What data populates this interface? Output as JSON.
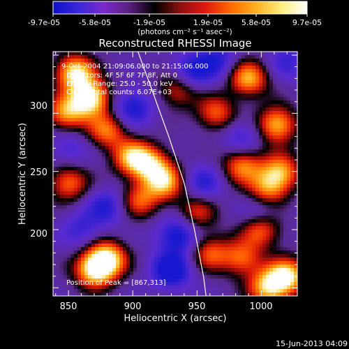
{
  "chart_data": {
    "type": "heatmap",
    "title": "Reconstructed RHESSI Image",
    "xlabel": "Heliocentric X (arcsec)",
    "ylabel": "Heliocentric Y (arcsec)",
    "xlim": [
      838,
      1028
    ],
    "ylim": [
      143,
      353
    ],
    "x_ticks": [
      850,
      900,
      950,
      1000
    ],
    "y_ticks": [
      200,
      250,
      300
    ],
    "colorbar": {
      "label": "(photons cm⁻² s⁻¹ asec⁻²)",
      "range": [
        -9.7e-05,
        9.7e-05
      ],
      "tick_labels": [
        "-9.7e-05",
        "-5.8e-05",
        "-1.9e-05",
        "1.9e-05",
        "5.8e-05",
        "9.7e-05"
      ],
      "colors": [
        "#1010c8",
        "#3a28d8",
        "#7a2ac8",
        "#5a2080",
        "#000000",
        "#8a1010",
        "#e01810",
        "#ff6a00",
        "#ffb020",
        "#ffee80",
        "#ffffff"
      ]
    },
    "annotations": [
      "9-Oct-2004 21:09:06.000 to 21:15:06.000",
      "Detectors: 4F 5F 6F 7F 8F, Att 0",
      "Energy Range: 25.0 - 50.0 keV",
      "Clean. Total counts: 6.07E+03"
    ],
    "peak_label": "Position of Peak = [867,313]",
    "peak": [
      867,
      313
    ],
    "limb": [
      [
        904,
        353
      ],
      [
        915,
        320
      ],
      [
        928,
        280
      ],
      [
        940,
        240
      ],
      [
        948,
        200
      ],
      [
        955,
        160
      ],
      [
        957,
        143
      ]
    ],
    "blobs": [
      {
        "x": 855,
        "y": 335,
        "v": 0.9
      },
      {
        "x": 867,
        "y": 313,
        "v": 1.0
      },
      {
        "x": 848,
        "y": 300,
        "v": 0.6
      },
      {
        "x": 880,
        "y": 285,
        "v": 0.5
      },
      {
        "x": 900,
        "y": 262,
        "v": 0.7
      },
      {
        "x": 915,
        "y": 255,
        "v": 0.55
      },
      {
        "x": 925,
        "y": 240,
        "v": 0.6
      },
      {
        "x": 905,
        "y": 225,
        "v": 0.4
      },
      {
        "x": 880,
        "y": 175,
        "v": 0.85
      },
      {
        "x": 870,
        "y": 165,
        "v": 0.8
      },
      {
        "x": 850,
        "y": 240,
        "v": 0.5
      },
      {
        "x": 935,
        "y": 320,
        "v": 0.35
      },
      {
        "x": 990,
        "y": 330,
        "v": 0.7
      },
      {
        "x": 1012,
        "y": 290,
        "v": 0.75
      },
      {
        "x": 1015,
        "y": 250,
        "v": 0.6
      },
      {
        "x": 1005,
        "y": 235,
        "v": 0.5
      },
      {
        "x": 985,
        "y": 255,
        "v": 0.55
      },
      {
        "x": 965,
        "y": 300,
        "v": 0.45
      },
      {
        "x": 1000,
        "y": 200,
        "v": 0.5
      },
      {
        "x": 1020,
        "y": 160,
        "v": 0.85
      },
      {
        "x": 1005,
        "y": 150,
        "v": 0.7
      },
      {
        "x": 985,
        "y": 175,
        "v": 0.45
      },
      {
        "x": 960,
        "y": 180,
        "v": 0.4
      },
      {
        "x": 950,
        "y": 215,
        "v": 0.3
      },
      {
        "x": 880,
        "y": 220,
        "v": -0.5
      },
      {
        "x": 900,
        "y": 305,
        "v": -0.6
      },
      {
        "x": 945,
        "y": 335,
        "v": -0.55
      },
      {
        "x": 935,
        "y": 195,
        "v": -0.7
      },
      {
        "x": 930,
        "y": 165,
        "v": -0.8
      },
      {
        "x": 955,
        "y": 240,
        "v": -0.45
      },
      {
        "x": 985,
        "y": 280,
        "v": -0.4
      },
      {
        "x": 965,
        "y": 345,
        "v": -0.5
      },
      {
        "x": 1020,
        "y": 345,
        "v": -0.35
      },
      {
        "x": 850,
        "y": 270,
        "v": -0.3
      },
      {
        "x": 1000,
        "y": 215,
        "v": -0.3
      },
      {
        "x": 860,
        "y": 200,
        "v": -0.35
      }
    ]
  },
  "footer": {
    "date": "15-Jun-2013 04:09"
  }
}
